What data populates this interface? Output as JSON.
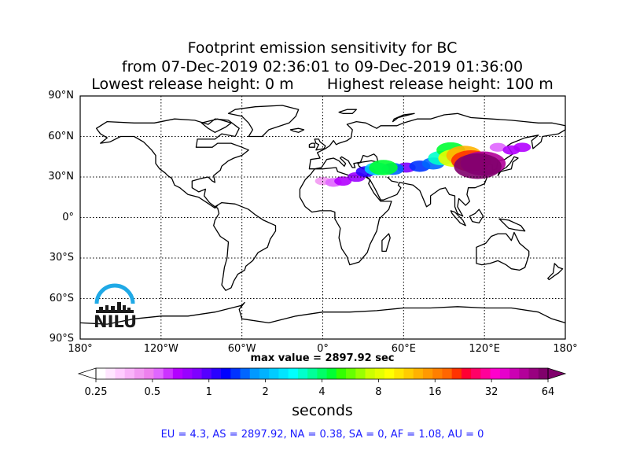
{
  "title": {
    "line1": "Footprint emission sensitivity for BC",
    "line2": "from 07-Dec-2019 02:36:01 to 09-Dec-2019 01:36:00",
    "line3": "Lowest release height: 0 m       Highest release height: 100 m"
  },
  "map": {
    "projection": "equirectangular",
    "lat_labels": [
      "90°N",
      "60°N",
      "30°N",
      "0°",
      "30°S",
      "60°S",
      "90°S"
    ],
    "lon_labels": [
      "180°",
      "120°W",
      "60°W",
      "0°",
      "60°E",
      "120°E",
      "180°"
    ],
    "lat_values": [
      90,
      60,
      30,
      0,
      -30,
      -60,
      -90
    ],
    "lon_values": [
      -180,
      -120,
      -60,
      0,
      60,
      120,
      180
    ],
    "grid": "dotted"
  },
  "max_value_text": "max value = 2897.92 sec",
  "colorbar": {
    "scale": "log",
    "range": [
      0.25,
      64
    ],
    "tick_labels": [
      "0.25",
      "0.5",
      "1",
      "2",
      "4",
      "8",
      "16",
      "32",
      "64"
    ],
    "units": "seconds",
    "colors": [
      "#ffffff",
      "#ffe6ff",
      "#ffccff",
      "#f9b3f9",
      "#f299f2",
      "#ee80ee",
      "#e066ff",
      "#cc33ff",
      "#b300ff",
      "#9900ff",
      "#7f00ff",
      "#5500ff",
      "#2a00ff",
      "#0000ff",
      "#0033ff",
      "#0066ff",
      "#0099ff",
      "#00b2ff",
      "#00ccff",
      "#00e5ff",
      "#00ffff",
      "#00ffcc",
      "#00ff99",
      "#00ff66",
      "#00ff33",
      "#33ff00",
      "#66ff00",
      "#99ff00",
      "#ccff00",
      "#e5ff00",
      "#ffff00",
      "#ffe500",
      "#ffcc00",
      "#ffb200",
      "#ff9900",
      "#ff7f00",
      "#ff6600",
      "#ff3300",
      "#ff0033",
      "#ff0066",
      "#ff0099",
      "#ff00cc",
      "#e600cc",
      "#cc00b3",
      "#b3009a",
      "#990080",
      "#80006b"
    ]
  },
  "regions_text": "EU = 4.3,  AS = 2897.92,  NA = 0.38,  SA = 0,  AF = 1.08,  AU = 0",
  "logo_text": "NILU",
  "chart_data": {
    "type": "heatmap",
    "title": "Footprint emission sensitivity for BC",
    "subtitle": "from 07-Dec-2019 02:36:01 to 09-Dec-2019 01:36:00",
    "release_height_m": {
      "lowest": 0,
      "highest": 100
    },
    "max_value_sec": 2897.92,
    "units": "seconds",
    "xlim": [
      -180,
      180
    ],
    "ylim": [
      -90,
      90
    ],
    "regional_totals": {
      "EU": 4.3,
      "AS": 2897.92,
      "NA": 0.38,
      "SA": 0,
      "AF": 1.08,
      "AU": 0
    },
    "plumes": [
      {
        "lon": 115,
        "lat": 38,
        "value": 64
      },
      {
        "lon": 119,
        "lat": 40,
        "value": 45
      },
      {
        "lon": 110,
        "lat": 42,
        "value": 20
      },
      {
        "lon": 105,
        "lat": 46,
        "value": 12
      },
      {
        "lon": 98,
        "lat": 44,
        "value": 8
      },
      {
        "lon": 95,
        "lat": 50,
        "value": 4
      },
      {
        "lon": 88,
        "lat": 44,
        "value": 3
      },
      {
        "lon": 82,
        "lat": 40,
        "value": 1.5
      },
      {
        "lon": 72,
        "lat": 38,
        "value": 1.2
      },
      {
        "lon": 62,
        "lat": 37,
        "value": 0.8
      },
      {
        "lon": 52,
        "lat": 36,
        "value": 1.5
      },
      {
        "lon": 45,
        "lat": 37,
        "value": 4
      },
      {
        "lon": 40,
        "lat": 36,
        "value": 2
      },
      {
        "lon": 32,
        "lat": 34,
        "value": 1
      },
      {
        "lon": 25,
        "lat": 30,
        "value": 0.7
      },
      {
        "lon": 15,
        "lat": 27,
        "value": 0.6
      },
      {
        "lon": 8,
        "lat": 26,
        "value": 0.5
      },
      {
        "lon": 0,
        "lat": 27,
        "value": 0.4
      },
      {
        "lon": 140,
        "lat": 50,
        "value": 0.6
      },
      {
        "lon": 148,
        "lat": 52,
        "value": 0.6
      },
      {
        "lon": 130,
        "lat": 52,
        "value": 0.5
      }
    ]
  }
}
